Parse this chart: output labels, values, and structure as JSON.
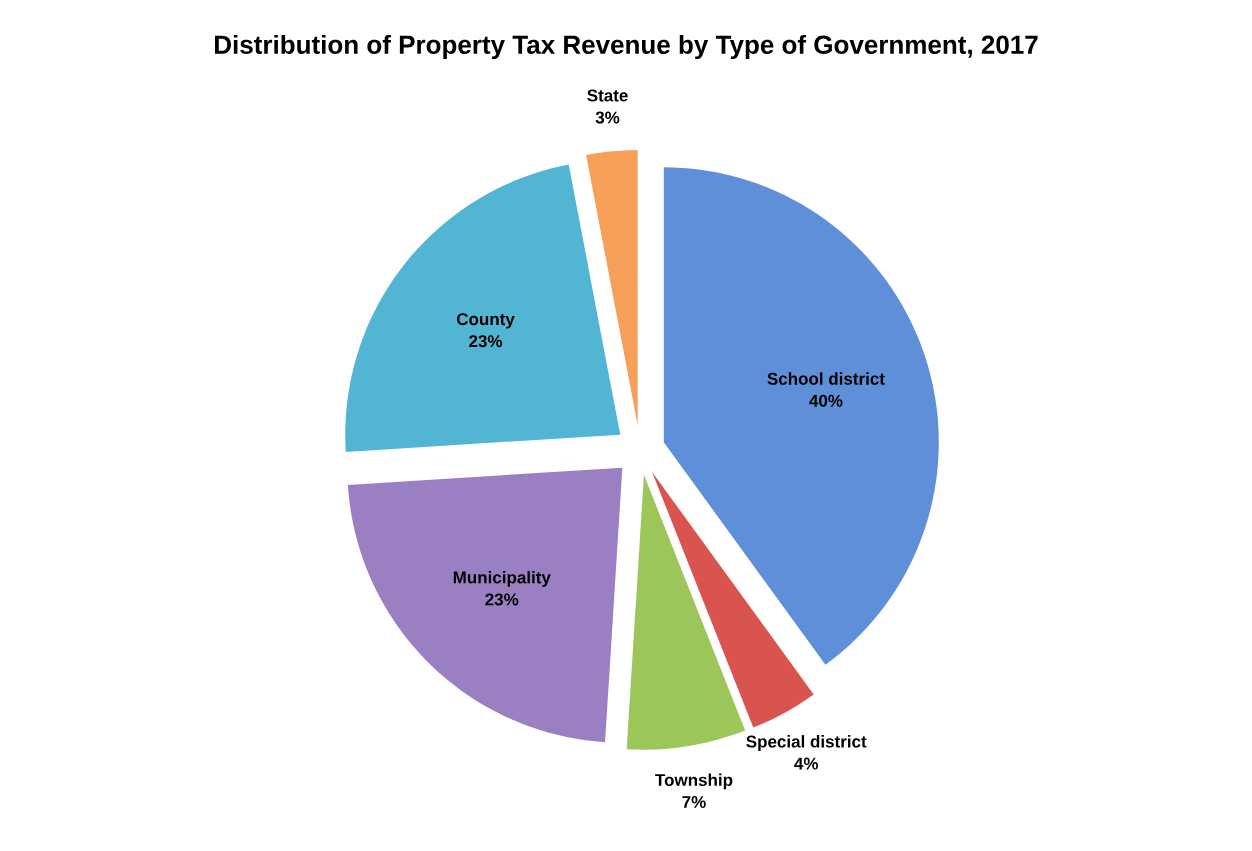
{
  "chart_data": {
    "type": "pie",
    "title": "Distribution of Property Tax Revenue by Type of Government, 2017",
    "categories": [
      "School district",
      "Special district",
      "Township",
      "Municipality",
      "County",
      "State"
    ],
    "values": [
      40,
      4,
      7,
      23,
      23,
      3
    ],
    "value_labels": [
      "40%",
      "4%",
      "7%",
      "23%",
      "23%",
      "3%"
    ],
    "colors": [
      "#5f8fd8",
      "#d9534f",
      "#9cc65a",
      "#9a80c2",
      "#52b5d4",
      "#f6a05a"
    ]
  }
}
